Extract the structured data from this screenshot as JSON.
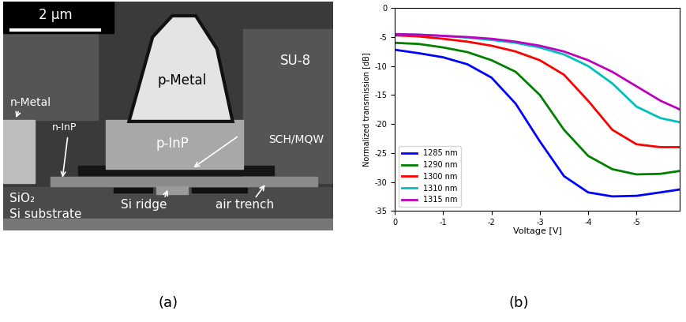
{
  "diagram": {
    "label": "(a)",
    "scale_bar": "2 μm",
    "labels": {
      "p_metal": "p-Metal",
      "su8": "SU-8",
      "p_inp": "p-InP",
      "n_metal": "n-Metal",
      "n_inp": "n-InP",
      "sch_mqw": "SCH/MQW",
      "sio2": "SiO₂",
      "si_substrate": "Si substrate",
      "si_ridge": "Si ridge",
      "air_trench": "air trench"
    }
  },
  "chart_data": {
    "type": "line",
    "label": "(b)",
    "x_label": "Voltage [V]",
    "y_label": "Normalized transmission [dB]",
    "x": [
      0,
      -0.5,
      -1,
      -1.5,
      -2,
      -2.5,
      -3,
      -3.5,
      -4,
      -4.5,
      -5,
      -5.5,
      -5.9
    ],
    "xlim": [
      0,
      -5.9
    ],
    "xticks": [
      0,
      -1,
      -2,
      -3,
      -4,
      -5
    ],
    "ylim": [
      -35,
      0
    ],
    "yticks": [
      -35,
      -30,
      -25,
      -20,
      -15,
      -10,
      -5,
      0
    ],
    "grid": false,
    "legend": "lower left",
    "series": [
      {
        "name": "1285 nm",
        "color": "#0000ff",
        "values": [
          -7.2,
          -7.8,
          -8.5,
          -9.7,
          -12,
          -16.5,
          -23,
          -29,
          -31.8,
          -32.5,
          -32.4,
          -31.8,
          -31.3
        ]
      },
      {
        "name": "1290 nm",
        "color": "#008000",
        "values": [
          -6,
          -6.2,
          -6.8,
          -7.6,
          -9,
          -11,
          -15,
          -21,
          -25.5,
          -27.8,
          -28.7,
          -28.6,
          -28.1
        ]
      },
      {
        "name": "1300 nm",
        "color": "#ff0000",
        "values": [
          -4.7,
          -4.9,
          -5.3,
          -5.8,
          -6.5,
          -7.5,
          -9,
          -11.5,
          -16,
          -21,
          -23.5,
          -24,
          -24
        ]
      },
      {
        "name": "1310 nm",
        "color": "#00bfbf",
        "values": [
          -4.5,
          -4.6,
          -4.8,
          -5.1,
          -5.5,
          -6,
          -6.8,
          -8,
          -10,
          -13,
          -17,
          -19,
          -19.7
        ]
      },
      {
        "name": "1315 nm",
        "color": "#bf00bf",
        "values": [
          -4.5,
          -4.6,
          -4.8,
          -5,
          -5.3,
          -5.8,
          -6.5,
          -7.5,
          -9,
          -11,
          -13.5,
          -16,
          -17.5
        ]
      }
    ]
  }
}
